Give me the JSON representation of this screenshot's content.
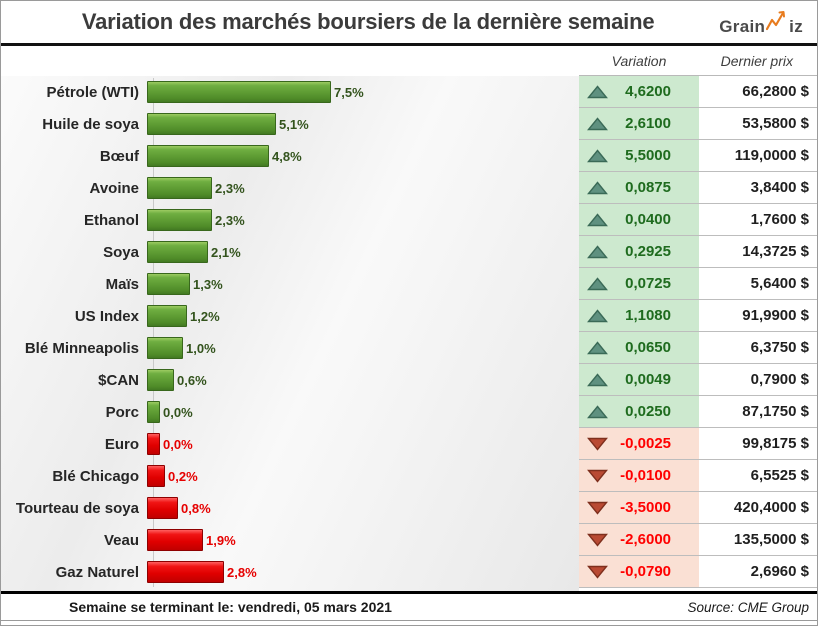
{
  "title": "Variation des marchés boursiers de la dernière semaine",
  "logo": {
    "part1": "Grain",
    "part2": "iz",
    "accent_color": "#e87c1f",
    "text_color": "#4a4a4a"
  },
  "columns": {
    "variation": "Variation",
    "last_price": "Dernier prix"
  },
  "footer": {
    "left": "Semaine se terminant le:  vendredi, 05 mars 2021",
    "right": "Source: CME Group"
  },
  "colors": {
    "bar_up": "#5f9d34",
    "bar_up_border": "#38671c",
    "bar_down": "#e00000",
    "bar_down_border": "#8e0000",
    "cell_up_bg": "#cde9cf",
    "cell_down_bg": "#fae0d4",
    "var_up_text": "#1e6b1e",
    "var_down_text": "#ff0000",
    "pct_up_text": "#33531d",
    "pct_down_text": "#e60000",
    "tri_up_fill": "#5f9180",
    "tri_up_stroke": "#3a6a57",
    "tri_down_fill": "#b94a33",
    "tri_down_stroke": "#7e2f1d",
    "row_separator": "#bdbdbd",
    "axis_line": "#c9c9c9"
  },
  "chart_data": {
    "type": "bar",
    "orientation": "horizontal",
    "title": "Variation des marchés boursiers de la dernière semaine",
    "xlabel": "",
    "ylabel": "",
    "legend": false,
    "grid": false,
    "categories": [
      "Pétrole (WTI)",
      "Huile de soya",
      "Bœuf",
      "Avoine",
      "Ethanol",
      "Soya",
      "Maïs",
      "US Index",
      "Blé Minneapolis",
      "$CAN",
      "Porc",
      "Euro",
      "Blé Chicago",
      "Tourteau de soya",
      "Veau",
      "Gaz Naturel"
    ],
    "values_pct": [
      7.5,
      5.1,
      4.8,
      2.3,
      2.3,
      2.1,
      1.3,
      1.2,
      1.0,
      0.6,
      0.0,
      0.0,
      -0.2,
      -0.8,
      -1.9,
      -2.8
    ],
    "bar_label_strings": [
      "7,5%",
      "5,1%",
      "4,8%",
      "2,3%",
      "2,3%",
      "2,1%",
      "1,3%",
      "1,2%",
      "1,0%",
      "0,6%",
      "0,0%",
      "0,0%",
      "0,2%",
      "0,8%",
      "1,9%",
      "2,8%"
    ],
    "variation_values": [
      4.62,
      2.61,
      5.5,
      0.0875,
      0.04,
      0.2925,
      0.0725,
      1.108,
      0.065,
      0.0049,
      0.025,
      -0.0025,
      -0.01,
      -3.5,
      -2.6,
      -0.079
    ],
    "last_prices": [
      66.28,
      53.58,
      119.0,
      3.84,
      1.76,
      14.3725,
      5.64,
      91.99,
      6.375,
      0.79,
      87.175,
      99.8175,
      6.5525,
      420.4,
      135.5,
      2.696
    ]
  },
  "rows": [
    {
      "label": "Pétrole (WTI)",
      "pct_label": "7,5%",
      "direction": "up",
      "variation": "4,6200",
      "price": "66,2800 $"
    },
    {
      "label": "Huile de soya",
      "pct_label": "5,1%",
      "direction": "up",
      "variation": "2,6100",
      "price": "53,5800 $"
    },
    {
      "label": "Bœuf",
      "pct_label": "4,8%",
      "direction": "up",
      "variation": "5,5000",
      "price": "119,0000 $"
    },
    {
      "label": "Avoine",
      "pct_label": "2,3%",
      "direction": "up",
      "variation": "0,0875",
      "price": "3,8400 $"
    },
    {
      "label": "Ethanol",
      "pct_label": "2,3%",
      "direction": "up",
      "variation": "0,0400",
      "price": "1,7600 $"
    },
    {
      "label": "Soya",
      "pct_label": "2,1%",
      "direction": "up",
      "variation": "0,2925",
      "price": "14,3725 $"
    },
    {
      "label": "Maïs",
      "pct_label": "1,3%",
      "direction": "up",
      "variation": "0,0725",
      "price": "5,6400 $"
    },
    {
      "label": "US Index",
      "pct_label": "1,2%",
      "direction": "up",
      "variation": "1,1080",
      "price": "91,9900 $"
    },
    {
      "label": "Blé Minneapolis",
      "pct_label": "1,0%",
      "direction": "up",
      "variation": "0,0650",
      "price": "6,3750 $"
    },
    {
      "label": "$CAN",
      "pct_label": "0,6%",
      "direction": "up",
      "variation": "0,0049",
      "price": "0,7900 $"
    },
    {
      "label": "Porc",
      "pct_label": "0,0%",
      "direction": "up",
      "variation": "0,0250",
      "price": "87,1750 $"
    },
    {
      "label": "Euro",
      "pct_label": "0,0%",
      "direction": "down",
      "variation": "-0,0025",
      "price": "99,8175 $"
    },
    {
      "label": "Blé Chicago",
      "pct_label": "0,2%",
      "direction": "down",
      "variation": "-0,0100",
      "price": "6,5525 $"
    },
    {
      "label": "Tourteau de soya",
      "pct_label": "0,8%",
      "direction": "down",
      "variation": "-3,5000",
      "price": "420,4000 $"
    },
    {
      "label": "Veau",
      "pct_label": "1,9%",
      "direction": "down",
      "variation": "-2,6000",
      "price": "135,5000 $"
    },
    {
      "label": "Gaz Naturel",
      "pct_label": "2,8%",
      "direction": "down",
      "variation": "-0,0790",
      "price": "2,6960 $"
    }
  ]
}
